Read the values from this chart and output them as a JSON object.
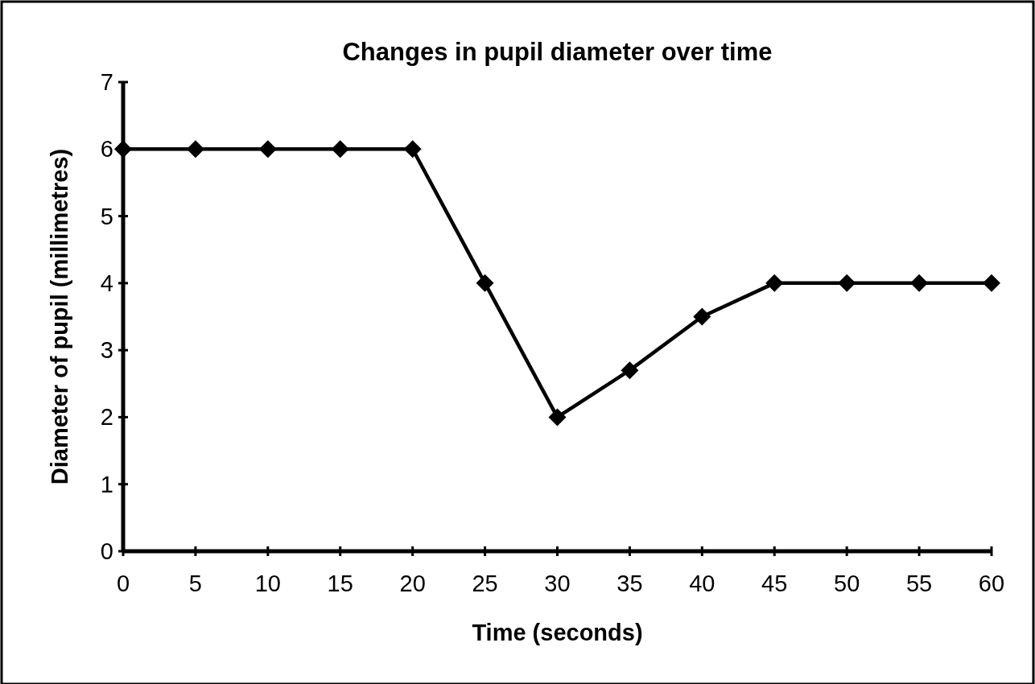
{
  "chart_data": {
    "type": "line",
    "title": "Changes in pupil diameter over time",
    "xlabel": "Time (seconds)",
    "ylabel": "Diameter of pupil (millimetres)",
    "x": [
      0,
      5,
      10,
      15,
      20,
      25,
      30,
      35,
      40,
      45,
      50,
      55,
      60
    ],
    "series": [
      {
        "color": "#000000",
        "values": [
          6,
          6,
          6,
          6,
          6,
          4,
          2,
          2.7,
          3.5,
          4,
          4,
          4,
          4
        ]
      }
    ],
    "xlim": [
      0,
      60
    ],
    "xticks": [
      0,
      5,
      10,
      15,
      20,
      25,
      30,
      35,
      40,
      45,
      50,
      55,
      60
    ],
    "ylim": [
      0,
      7
    ],
    "yticks": [
      0,
      1,
      2,
      3,
      4,
      5,
      6,
      7
    ],
    "grid": false,
    "marker": "diamond",
    "line_style": "solid"
  }
}
